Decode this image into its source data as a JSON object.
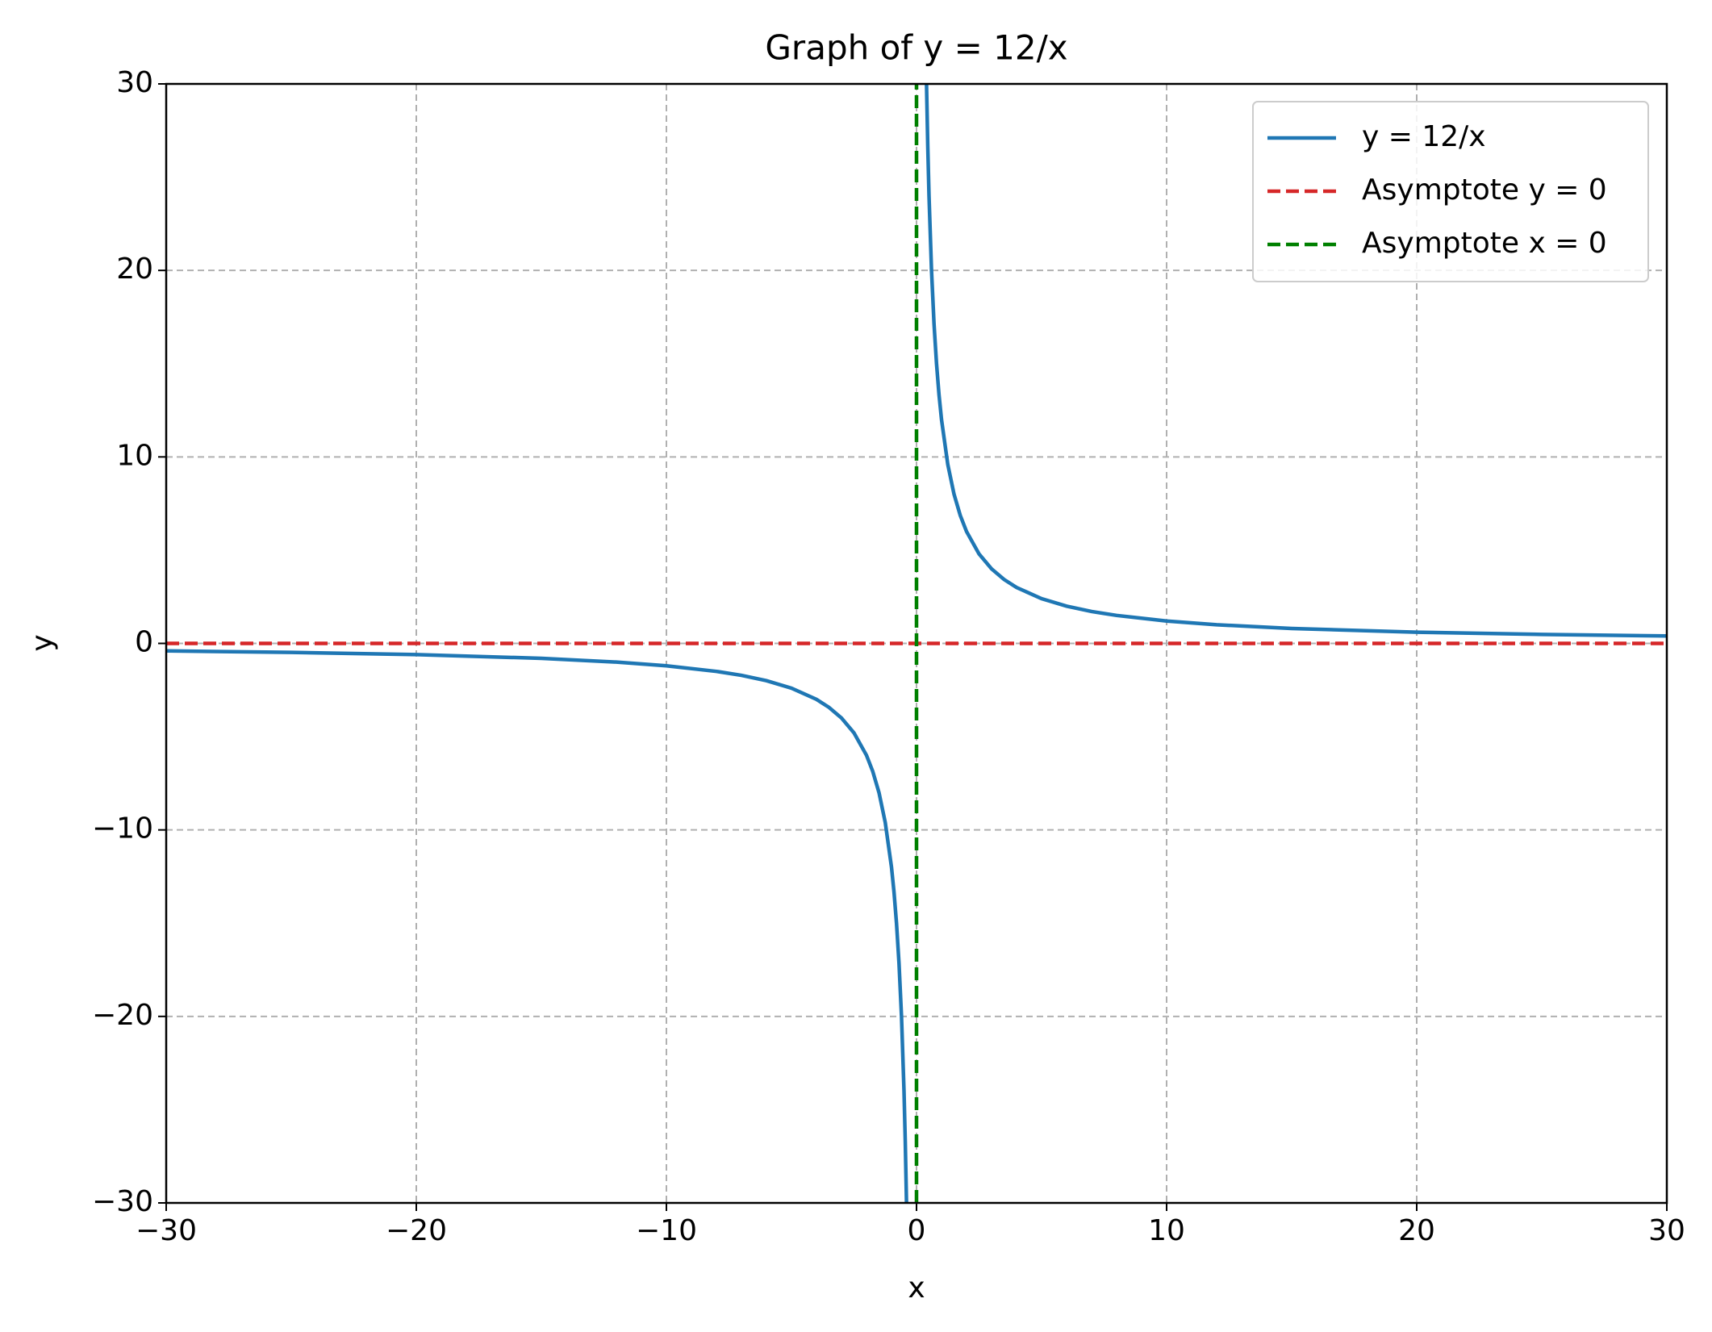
{
  "chart_data": {
    "type": "line",
    "title": "Graph of y = 12/x",
    "x_label": "x",
    "y_label": "y",
    "xlim": [
      -30,
      30
    ],
    "ylim": [
      -30,
      30
    ],
    "xticks": [
      {
        "value": -30,
        "label": "−30"
      },
      {
        "value": -20,
        "label": "−20"
      },
      {
        "value": -10,
        "label": "−10"
      },
      0,
      10,
      20,
      30
    ],
    "yticks": [
      {
        "value": -30,
        "label": "−30"
      },
      {
        "value": -20,
        "label": "−20"
      },
      {
        "value": -10,
        "label": "−10"
      },
      0,
      10,
      20,
      30
    ],
    "grid": true,
    "legend": "upper right",
    "series": [
      {
        "name": "y = 12/x",
        "color": "#1f77b4",
        "style": "solid",
        "x": [
          -30,
          -25,
          -20,
          -15,
          -12,
          -10,
          -8,
          -7,
          -6,
          -5,
          -4,
          -3.5,
          -3,
          -2.5,
          -2,
          -1.75,
          -1.5,
          -1.25,
          -1,
          -0.9,
          -0.8,
          -0.7,
          -0.6,
          -0.5,
          -0.45,
          -0.4,
          0,
          0.4,
          0.45,
          0.5,
          0.6,
          0.7,
          0.8,
          0.9,
          1,
          1.25,
          1.5,
          1.75,
          2,
          2.5,
          3,
          3.5,
          4,
          5,
          6,
          7,
          8,
          10,
          12,
          15,
          20,
          25,
          30
        ],
        "values": [
          -0.4,
          -0.48,
          -0.6,
          -0.8,
          -1,
          -1.2,
          -1.5,
          -1.71,
          -2,
          -2.4,
          -3,
          -3.43,
          -4,
          -4.8,
          -6,
          -6.86,
          -8,
          -9.6,
          -12,
          -13.33,
          -15,
          -17.14,
          -20,
          -24,
          -26.67,
          -30,
          null,
          30,
          26.67,
          24,
          20,
          17.14,
          15,
          13.33,
          12,
          9.6,
          8,
          6.86,
          6,
          4.8,
          4,
          3.43,
          3,
          2.4,
          2,
          1.71,
          1.5,
          1.2,
          1,
          0.8,
          0.6,
          0.48,
          0.4
        ]
      },
      {
        "name": "Asymptote y = 0",
        "color": "#d62728",
        "style": "dashed",
        "x": [
          -30,
          30
        ],
        "values": [
          0,
          0
        ]
      },
      {
        "name": "Asymptote x = 0",
        "color": "#008000",
        "style": "dashed",
        "x": [
          0,
          0
        ],
        "values": [
          -30,
          30
        ]
      }
    ]
  }
}
